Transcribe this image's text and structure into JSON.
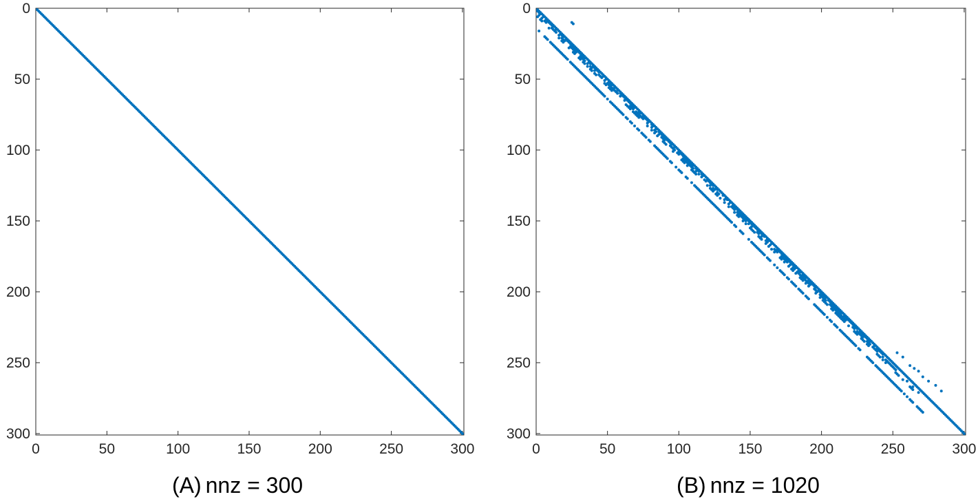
{
  "chart_data": [
    {
      "type": "scatter",
      "subtype": "sparsity-pattern",
      "caption_tag": "(A)",
      "xlabel": "nnz = 300",
      "xlim": [
        0,
        301
      ],
      "ylim": [
        0,
        301
      ],
      "y_axis_reversed": true,
      "xticks": [
        0,
        50,
        100,
        150,
        200,
        250,
        300
      ],
      "yticks": [
        0,
        50,
        100,
        150,
        200,
        250,
        300
      ],
      "grid": false,
      "marker_color": "#0072BD",
      "bands": [
        {
          "offset": 0,
          "row_start": 1,
          "row_end": 300,
          "density": 1.0
        }
      ]
    },
    {
      "type": "scatter",
      "subtype": "sparsity-pattern",
      "caption_tag": "(B)",
      "xlabel": "nnz = 1020",
      "xlim": [
        0,
        301
      ],
      "ylim": [
        0,
        301
      ],
      "y_axis_reversed": true,
      "xticks": [
        0,
        50,
        100,
        150,
        200,
        250,
        300
      ],
      "yticks": [
        0,
        50,
        100,
        150,
        200,
        250,
        300
      ],
      "grid": false,
      "marker_color": "#0072BD",
      "bands": [
        {
          "offset": 0,
          "row_start": 1,
          "row_end": 300,
          "density": 1.0
        },
        {
          "offset": -1,
          "row_start": 2,
          "row_end": 245,
          "density": 0.8
        },
        {
          "offset": -3,
          "row_start": 4,
          "row_end": 255,
          "density": 0.65
        },
        {
          "offset": -5,
          "row_start": 6,
          "row_end": 270,
          "density": 0.45
        },
        {
          "offset": -14,
          "row_start": 15,
          "row_end": 285,
          "density": 0.8
        }
      ],
      "extra_points": [
        [
          25,
          10
        ],
        [
          26,
          11
        ],
        [
          253,
          243
        ],
        [
          257,
          246
        ],
        [
          262,
          252
        ],
        [
          265,
          254
        ],
        [
          268,
          256
        ],
        [
          271,
          260
        ],
        [
          275,
          263
        ],
        [
          280,
          266
        ],
        [
          284,
          270
        ],
        [
          254,
          259
        ],
        [
          260,
          263
        ],
        [
          264,
          267
        ],
        [
          268,
          271
        ]
      ]
    }
  ]
}
